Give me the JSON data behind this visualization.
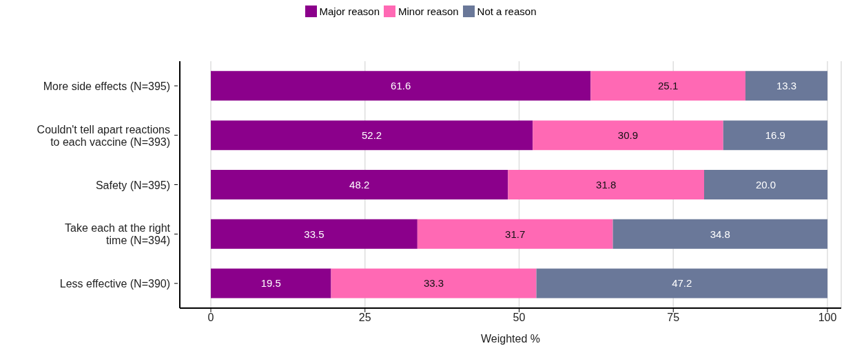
{
  "chart_data": {
    "type": "bar",
    "orientation": "horizontal",
    "stacked": true,
    "xlabel": "Weighted %",
    "categories": [
      "More side effects (N=395)",
      "Couldn't tell apart reactions\nto each vaccine (N=393)",
      "Safety (N=395)",
      "Take each at the right\ntime (N=394)",
      "Less effective (N=390)"
    ],
    "series": [
      {
        "name": "Major reason",
        "color": "#8b008b",
        "values": [
          61.6,
          52.2,
          48.2,
          33.5,
          19.5
        ],
        "value_labels": [
          "61.6",
          "52.2",
          "48.2",
          "33.5",
          "19.5"
        ]
      },
      {
        "name": "Minor reason",
        "color": "#ff69b4",
        "values": [
          25.1,
          30.9,
          31.8,
          31.7,
          33.3
        ],
        "value_labels": [
          "25.1",
          "30.9",
          "31.8",
          "31.7",
          "33.3"
        ]
      },
      {
        "name": "Not a reason",
        "color": "#6a7899",
        "values": [
          13.3,
          16.9,
          20.0,
          34.8,
          47.2
        ],
        "value_labels": [
          "13.3",
          "16.9",
          "20.0",
          "34.8",
          "47.2"
        ]
      }
    ],
    "xlim": [
      0,
      100
    ],
    "xticks": [
      0,
      25,
      50,
      75,
      100
    ],
    "grid": "x",
    "legend": "top"
  }
}
